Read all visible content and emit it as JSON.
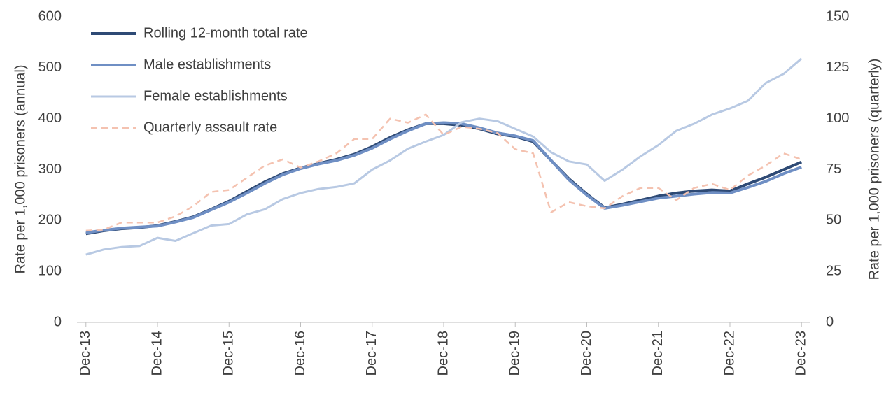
{
  "chart_data": {
    "type": "line",
    "y_label": "Rate per 1,000 prisoners (annual)",
    "y2_label": "Rate per 1,000 prisoners (quarterly)",
    "categories": [
      "Dec-13",
      null,
      null,
      null,
      "Dec-14",
      null,
      null,
      null,
      "Dec-15",
      null,
      null,
      null,
      "Dec-16",
      null,
      null,
      null,
      "Dec-17",
      null,
      null,
      null,
      "Dec-18",
      null,
      null,
      null,
      "Dec-19",
      null,
      null,
      null,
      "Dec-20",
      null,
      null,
      null,
      "Dec-21",
      null,
      null,
      null,
      "Dec-22",
      null,
      null,
      null,
      "Dec-23"
    ],
    "ylim": [
      0,
      600
    ],
    "yticks": [
      0,
      100,
      200,
      300,
      400,
      500,
      600
    ],
    "y2lim": [
      0,
      150
    ],
    "y2ticks": [
      0,
      25,
      50,
      75,
      100,
      125,
      150
    ],
    "legend": "upper left",
    "series": [
      {
        "name": "Rolling 12-month total rate",
        "color": "#2e4a75",
        "width": 4,
        "dashed": false,
        "values": [
          174,
          180,
          184,
          186,
          190,
          198,
          207,
          222,
          238,
          257,
          276,
          292,
          303,
          312,
          320,
          330,
          345,
          363,
          378,
          390,
          390,
          387,
          380,
          370,
          365,
          355,
          318,
          282,
          252,
          225,
          232,
          240,
          248,
          254,
          258,
          260,
          258,
          272,
          285,
          300,
          315
        ]
      },
      {
        "name": "Male establishments",
        "color": "#6f8fc4",
        "width": 4,
        "dashed": false,
        "values": [
          176,
          181,
          185,
          187,
          189,
          197,
          206,
          221,
          236,
          254,
          273,
          290,
          302,
          311,
          318,
          328,
          342,
          360,
          376,
          390,
          392,
          390,
          382,
          372,
          366,
          357,
          318,
          280,
          250,
          224,
          230,
          237,
          244,
          248,
          252,
          255,
          254,
          265,
          277,
          292,
          305
        ]
      },
      {
        "name": "Female establishments",
        "color": "#b8c9e3",
        "width": 3,
        "dashed": false,
        "values": [
          133,
          143,
          148,
          150,
          166,
          160,
          175,
          190,
          193,
          212,
          222,
          242,
          254,
          262,
          266,
          273,
          300,
          318,
          341,
          355,
          368,
          393,
          400,
          395,
          380,
          365,
          334,
          316,
          310,
          278,
          300,
          326,
          348,
          376,
          390,
          408,
          420,
          435,
          470,
          488,
          518
        ]
      },
      {
        "name": "Quarterly assault rate",
        "color": "#f4c2b0",
        "width": 2.5,
        "dashed": true,
        "axis": "y2",
        "values": [
          45,
          45.5,
          49,
          49,
          49,
          52,
          57,
          64,
          65,
          71,
          77,
          80,
          76,
          79,
          83,
          90,
          90,
          100,
          98,
          102,
          92,
          96,
          95,
          93,
          85,
          83,
          54,
          59,
          57,
          56,
          62,
          66,
          66,
          60,
          66,
          68,
          65,
          72,
          77,
          83,
          80
        ]
      }
    ]
  }
}
